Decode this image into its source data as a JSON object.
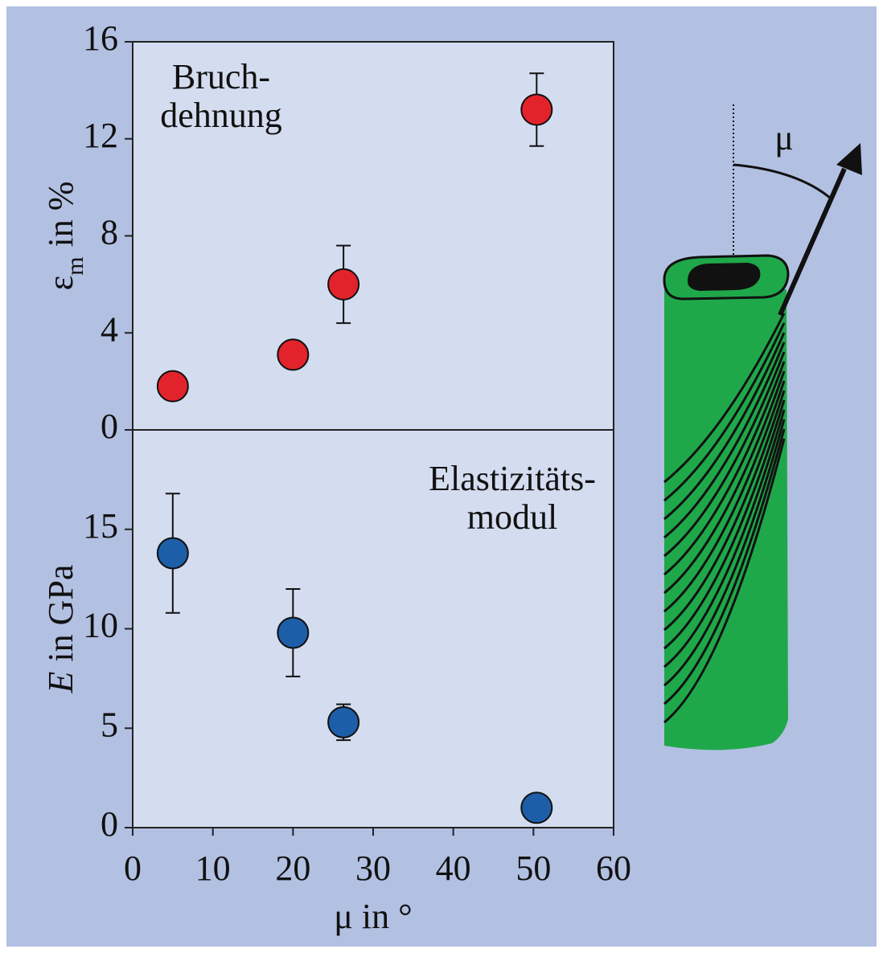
{
  "chart_data": [
    {
      "type": "scatter",
      "y_label": {
        "symbol": "ε",
        "subscript": "m",
        "text": "in %"
      },
      "annotation": [
        "Bruch-",
        "dehnung"
      ],
      "x": [
        5,
        20,
        26.3,
        50.4
      ],
      "values": [
        1.8,
        3.1,
        6.0,
        13.2
      ],
      "errors": [
        null,
        null,
        1.6,
        1.5
      ],
      "color": "#e3232b",
      "xlim": [
        0,
        60
      ],
      "ylim": [
        0,
        16
      ],
      "yticks": [
        0,
        4,
        8,
        12,
        16
      ]
    },
    {
      "type": "scatter",
      "y_label": {
        "symbol": "E",
        "text": "in GPa"
      },
      "x_label": "μ in °",
      "annotation": [
        "Elastizitäts-",
        "modul"
      ],
      "x": [
        5,
        20,
        26.3,
        50.4
      ],
      "values": [
        13.8,
        9.8,
        5.3,
        1.0
      ],
      "errors": [
        3.0,
        2.2,
        0.9,
        null
      ],
      "color": "#1d5ea8",
      "xlim": [
        0,
        60
      ],
      "xticks": [
        0,
        10,
        20,
        30,
        40,
        50,
        60
      ],
      "ylim": [
        0,
        20
      ],
      "yticks": [
        0,
        5,
        10,
        15
      ]
    }
  ],
  "diagram": {
    "angle_label": "μ"
  }
}
